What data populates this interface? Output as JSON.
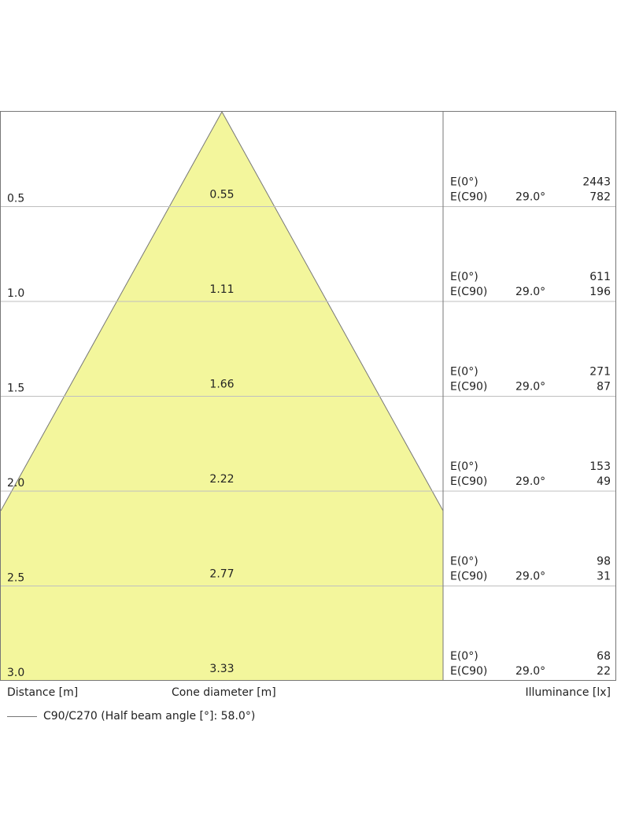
{
  "chart_data": {
    "type": "cone-diagram",
    "half_beam_angle_deg": 58.0,
    "rows": [
      {
        "distance": "0.5",
        "cone_diameter": "0.55",
        "e0_label": "E(0°)",
        "e0_value": "2443",
        "ec90_label": "E(C90)",
        "angle": "29.0°",
        "ec90_value": "782"
      },
      {
        "distance": "1.0",
        "cone_diameter": "1.11",
        "e0_label": "E(0°)",
        "e0_value": "611",
        "ec90_label": "E(C90)",
        "angle": "29.0°",
        "ec90_value": "196"
      },
      {
        "distance": "1.5",
        "cone_diameter": "1.66",
        "e0_label": "E(0°)",
        "e0_value": "271",
        "ec90_label": "E(C90)",
        "angle": "29.0°",
        "ec90_value": "87"
      },
      {
        "distance": "2.0",
        "cone_diameter": "2.22",
        "e0_label": "E(0°)",
        "e0_value": "153",
        "ec90_label": "E(C90)",
        "angle": "29.0°",
        "ec90_value": "49"
      },
      {
        "distance": "2.5",
        "cone_diameter": "2.77",
        "e0_label": "E(0°)",
        "e0_value": "98",
        "ec90_label": "E(C90)",
        "angle": "29.0°",
        "ec90_value": "31"
      },
      {
        "distance": "3.0",
        "cone_diameter": "3.33",
        "e0_label": "E(0°)",
        "e0_value": "68",
        "ec90_label": "E(C90)",
        "angle": "29.0°",
        "ec90_value": "22"
      }
    ],
    "x_max_m": 3.0,
    "colors": {
      "cone_fill": "#f3f69c",
      "cone_stroke": "#777777",
      "grid": "#bfbfbf",
      "frame": "#777777"
    }
  },
  "labels": {
    "distance_axis": "Distance [m]",
    "cone_axis": "Cone diameter [m]",
    "illuminance_axis": "Illuminance [lx]",
    "legend": "C90/C270 (Half beam angle [°]: 58.0°)"
  }
}
